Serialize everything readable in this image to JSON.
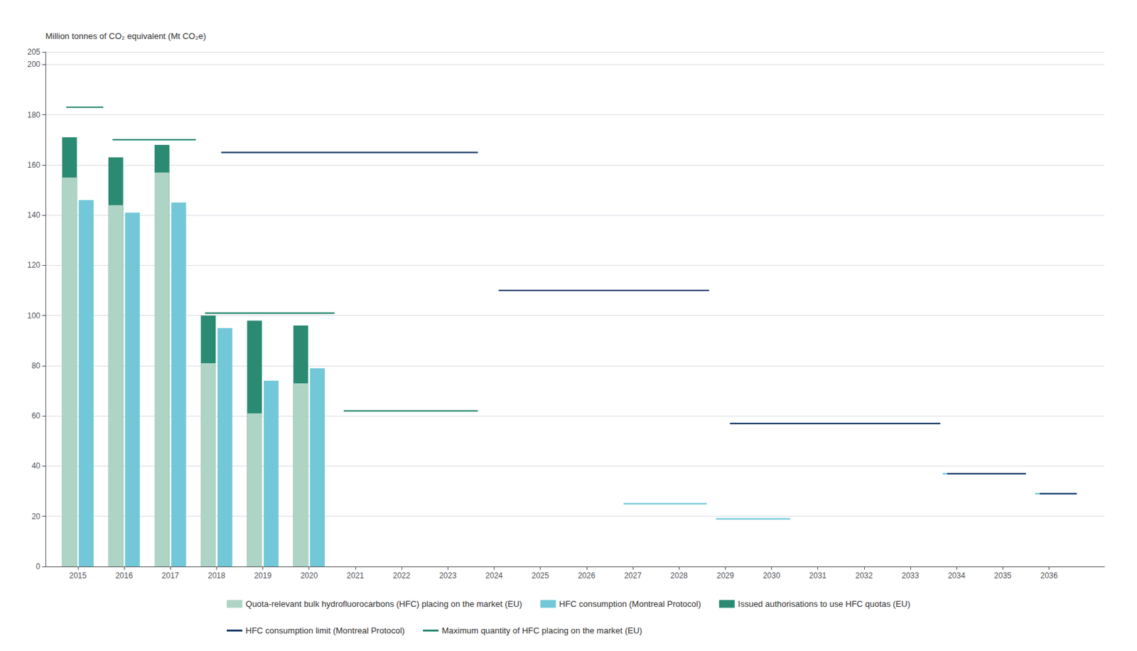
{
  "chart_data": {
    "type": "bar",
    "ylabel": "Million tonnes of CO₂ equivalent (Mt CO₂e)",
    "xlim": [
      2014.3,
      2037.2
    ],
    "xticks": [
      2015,
      2016,
      2017,
      2018,
      2019,
      2020,
      2021,
      2022,
      2023,
      2024,
      2025,
      2026,
      2027,
      2028,
      2029,
      2030,
      2031,
      2032,
      2033,
      2034,
      2035,
      2036
    ],
    "ylim": [
      0,
      205
    ],
    "yticks": [
      0,
      20,
      40,
      60,
      80,
      100,
      120,
      140,
      160,
      180,
      200
    ],
    "grid": true,
    "legend": "bottom",
    "series": [
      {
        "name": "Quota-relevant bulk hydrofluorocarbons (HFC) placing on the market (EU)",
        "type": "bar",
        "color": "#aed4c5",
        "x": [
          2015,
          2016,
          2017,
          2018,
          2019,
          2020
        ],
        "values": [
          155,
          144,
          157,
          81,
          61,
          73
        ]
      },
      {
        "name": "HFC consumption (Montreal Protocol)",
        "type": "bar",
        "color": "#72c8d8",
        "x": [
          2015,
          2016,
          2017,
          2018,
          2019,
          2020
        ],
        "values": [
          146,
          141,
          145,
          95,
          74,
          79
        ]
      },
      {
        "name": "Issued authorisations to use HFC quotas (EU)",
        "type": "bar",
        "color": "#2a8a72",
        "x": [
          2015,
          2016,
          2017,
          2018,
          2019,
          2020
        ],
        "values": [
          171,
          163,
          168,
          100,
          98,
          96
        ]
      },
      {
        "name": "HFC consumption (Montreal Protocol)",
        "type": "line",
        "color": "#72c8d8",
        "segments": [
          {
            "x1": 2024.1,
            "x2": 2026.6,
            "y": 110
          },
          {
            "x1": 2026.8,
            "x2": 2028.6,
            "y": 25
          },
          {
            "x1": 2028.8,
            "x2": 2030.4,
            "y": 19
          },
          {
            "x1": 2033.7,
            "x2": 2035.5,
            "y": 37
          },
          {
            "x1": 2035.7,
            "x2": 2036.6,
            "y": 29
          }
        ]
      },
      {
        "name": "HFC consumption limit (Montreal Protocol)",
        "type": "line",
        "color": "#1b3d6b",
        "segments": [
          {
            "x1": 2018.1,
            "x2": 2023.65,
            "y": 165
          },
          {
            "x1": 2024.1,
            "x2": 2028.65,
            "y": 110
          },
          {
            "x1": 2029.1,
            "x2": 2033.65,
            "y": 57
          },
          {
            "x1": 2033.8,
            "x2": 2035.5,
            "y": 37
          },
          {
            "x1": 2035.8,
            "x2": 2036.6,
            "y": 29
          }
        ]
      },
      {
        "name": "Maximum quantity of HFC placing on the market (EU)",
        "type": "line",
        "color": "#2a8a72",
        "segments": [
          {
            "x1": 2014.75,
            "x2": 2015.55,
            "y": 183
          },
          {
            "x1": 2015.75,
            "x2": 2017.55,
            "y": 170
          },
          {
            "x1": 2017.75,
            "x2": 2020.55,
            "y": 101
          },
          {
            "x1": 2020.75,
            "x2": 2023.65,
            "y": 62
          }
        ]
      }
    ]
  }
}
